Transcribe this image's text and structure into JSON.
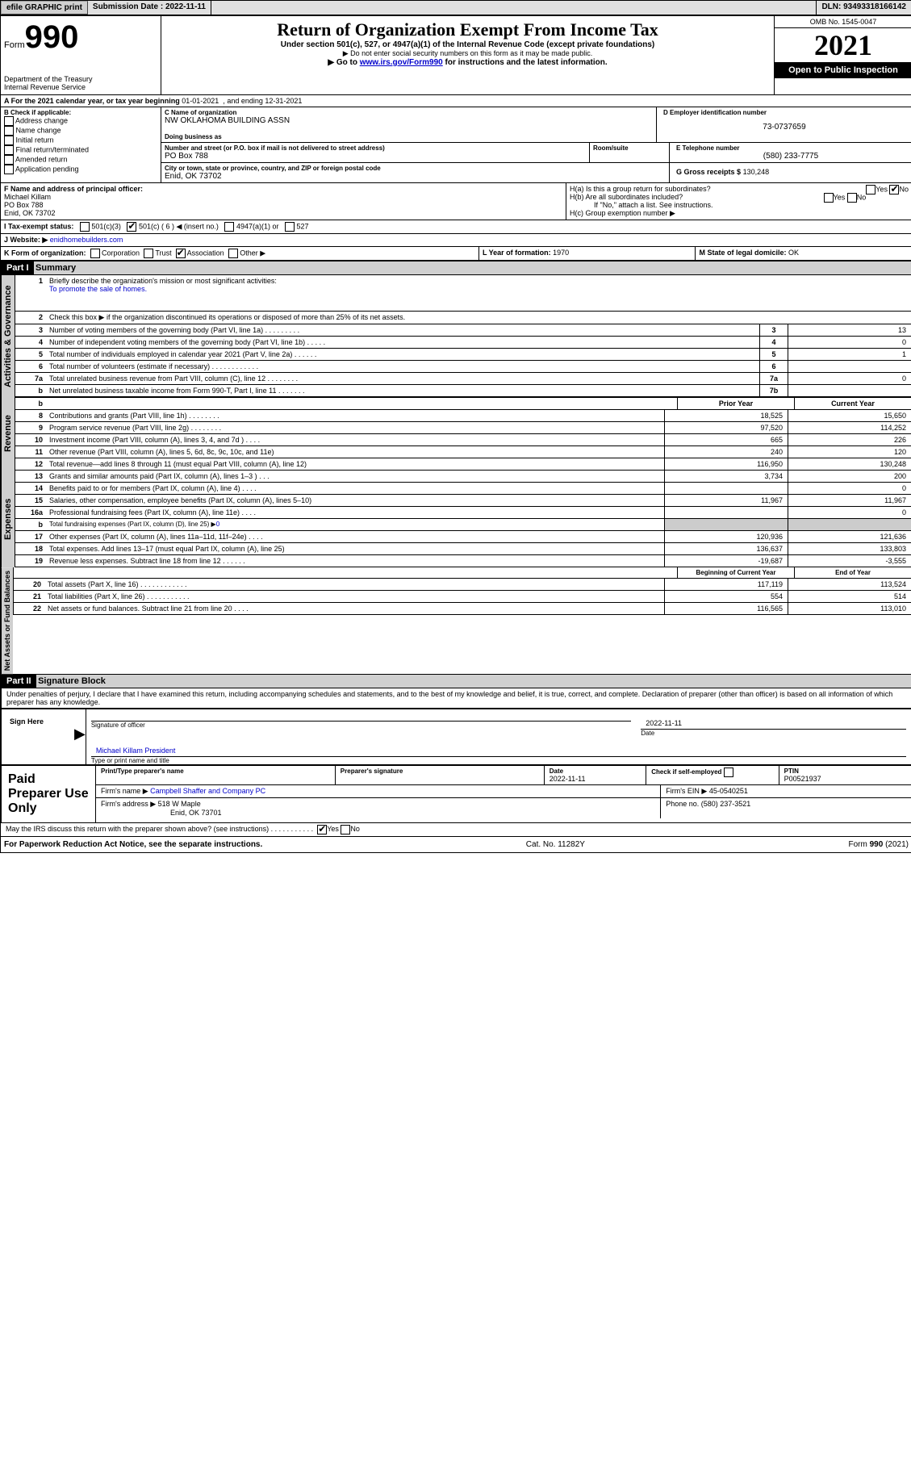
{
  "topbar": {
    "efile": "efile GRAPHIC print",
    "sub_lbl": "Submission Date :",
    "sub_date": "2022-11-11",
    "dln_lbl": "DLN:",
    "dln": "93493318166142"
  },
  "header": {
    "form": "Form",
    "no": "990",
    "dept": "Department of the Treasury",
    "irs": "Internal Revenue Service",
    "title": "Return of Organization Exempt From Income Tax",
    "sub1": "Under section 501(c), 527, or 4947(a)(1) of the Internal Revenue Code (except private foundations)",
    "sub2": "▶ Do not enter social security numbers on this form as it may be made public.",
    "sub3": "▶ Go to",
    "link": "www.irs.gov/Form990",
    "sub3b": "for instructions and the latest information.",
    "omb": "OMB No. 1545-0047",
    "year": "2021",
    "open": "Open to Public Inspection"
  },
  "lineA": {
    "pre": "A For the 2021 calendar year, or tax year beginning",
    "d1": "01-01-2021",
    "mid": ", and ending",
    "d2": "12-31-2021"
  },
  "B": {
    "hdr": "B Check if applicable:",
    "items": [
      "Address change",
      "Name change",
      "Initial return",
      "Final return/terminated",
      "Amended return",
      "Application pending"
    ]
  },
  "C": {
    "name_lbl": "C Name of organization",
    "name": "NW OKLAHOMA BUILDING ASSN",
    "dba_lbl": "Doing business as",
    "dba": "",
    "addr_lbl": "Number and street (or P.O. box if mail is not delivered to street address)",
    "addr": "PO Box 788",
    "room_lbl": "Room/suite",
    "city_lbl": "City or town, state or province, country, and ZIP or foreign postal code",
    "city": "Enid, OK  73702"
  },
  "D": {
    "lbl": "D Employer identification number",
    "val": "73-0737659"
  },
  "E": {
    "lbl": "E Telephone number",
    "val": "(580) 233-7775"
  },
  "G": {
    "lbl": "G Gross receipts $",
    "val": "130,248"
  },
  "F": {
    "lbl": "F  Name and address of principal officer:",
    "name": "Michael Killam",
    "addr1": "PO Box 788",
    "addr2": "Enid, OK  73702"
  },
  "H": {
    "a": "H(a)  Is this a group return for subordinates?",
    "b": "H(b)  Are all subordinates included?",
    "note": "If \"No,\" attach a list. See instructions.",
    "c": "H(c)  Group exemption number ▶",
    "yes": "Yes",
    "no": "No"
  },
  "I": {
    "lbl": "I    Tax-exempt status:",
    "o1": "501(c)(3)",
    "o2": "501(c) (",
    "o2n": "6",
    "o2e": ") ◀ (insert no.)",
    "o3": "4947(a)(1) or",
    "o4": "527"
  },
  "J": {
    "lbl": "J    Website: ▶",
    "val": "enidhomebuilders.com"
  },
  "K": {
    "lbl": "K Form of organization:",
    "o1": "Corporation",
    "o2": "Trust",
    "o3": "Association",
    "o4": "Other ▶"
  },
  "L": {
    "lbl": "L Year of formation:",
    "val": "1970"
  },
  "M": {
    "lbl": "M State of legal domicile:",
    "val": "OK"
  },
  "part1": {
    "hdr": "Part I",
    "title": "Summary"
  },
  "summary": {
    "q1": "Briefly describe the organization's mission or most significant activities:",
    "mission": "To promote the sale of homes.",
    "q2": "Check this box ▶         if the organization discontinued its operations or disposed of more than 25% of its net assets.",
    "lines": [
      {
        "n": "3",
        "t": "Number of voting members of the governing body (Part VI, line 1a)   .     .     .     .     .     .     .     .     .",
        "bx": "3",
        "v": "13"
      },
      {
        "n": "4",
        "t": "Number of independent voting members of the governing body (Part VI, line 1b)    .     .     .     .     .",
        "bx": "4",
        "v": "0"
      },
      {
        "n": "5",
        "t": "Total number of individuals employed in calendar year 2021 (Part V, line 2a)    .     .     .     .     .     .",
        "bx": "5",
        "v": "1"
      },
      {
        "n": "6",
        "t": "Total number of volunteers (estimate if necessary)    .     .     .     .     .     .     .     .     .     .     .     .",
        "bx": "6",
        "v": ""
      },
      {
        "n": "7a",
        "t": "Total unrelated business revenue from Part VIII, column (C), line 12    .     .     .     .     .     .     .     .",
        "bx": "7a",
        "v": "0"
      },
      {
        "n": "b",
        "t": "Net unrelated business taxable income from Form 990-T, Part I, line 11    .     .     .     .     .     .     .",
        "bx": "7b",
        "v": ""
      }
    ]
  },
  "cols": {
    "prior": "Prior Year",
    "curr": "Current Year",
    "boy": "Beginning of Current Year",
    "eoy": "End of Year",
    "b": "b"
  },
  "tabs": {
    "ag": "Activities & Governance",
    "rev": "Revenue",
    "exp": "Expenses",
    "na": "Net Assets or Fund Balances"
  },
  "rev": [
    {
      "n": "8",
      "t": "Contributions and grants (Part VIII, line 1h)   .     .     .     .     .     .     .     .",
      "p": "18,525",
      "c": "15,650"
    },
    {
      "n": "9",
      "t": "Program service revenue (Part VIII, line 2g)   .     .     .     .     .     .     .     .",
      "p": "97,520",
      "c": "114,252"
    },
    {
      "n": "10",
      "t": "Investment income (Part VIII, column (A), lines 3, 4, and 7d )  .     .     .     .",
      "p": "665",
      "c": "226"
    },
    {
      "n": "11",
      "t": "Other revenue (Part VIII, column (A), lines 5, 6d, 8c, 9c, 10c, and 11e)",
      "p": "240",
      "c": "120"
    },
    {
      "n": "12",
      "t": "Total revenue—add lines 8 through 11 (must equal Part VIII, column (A), line 12)",
      "p": "116,950",
      "c": "130,248"
    }
  ],
  "exp": [
    {
      "n": "13",
      "t": "Grants and similar amounts paid (Part IX, column (A), lines 1–3 )   .     .     .",
      "p": "3,734",
      "c": "200"
    },
    {
      "n": "14",
      "t": "Benefits paid to or for members (Part IX, column (A), line 4)   .     .     .     .",
      "p": "",
      "c": "0"
    },
    {
      "n": "15",
      "t": "Salaries, other compensation, employee benefits (Part IX, column (A), lines 5–10)",
      "p": "11,967",
      "c": "11,967"
    },
    {
      "n": "16a",
      "t": "Professional fundraising fees (Part IX, column (A), line 11e)   .     .     .     .",
      "p": "",
      "c": "0"
    },
    {
      "n": "b",
      "t": "Total fundraising expenses (Part IX, column (D), line 25) ▶",
      "bval": "0",
      "shade": true
    },
    {
      "n": "17",
      "t": "Other expenses (Part IX, column (A), lines 11a–11d, 11f–24e)   .     .     .     .",
      "p": "120,936",
      "c": "121,636"
    },
    {
      "n": "18",
      "t": "Total expenses. Add lines 13–17 (must equal Part IX, column (A), line 25)",
      "p": "136,637",
      "c": "133,803"
    },
    {
      "n": "19",
      "t": "Revenue less expenses. Subtract line 18 from line 12   .     .     .     .     .     .",
      "p": "-19,687",
      "c": "-3,555"
    }
  ],
  "na": [
    {
      "n": "20",
      "t": "Total assets (Part X, line 16)   .     .     .     .     .     .     .     .     .     .     .     .",
      "p": "117,119",
      "c": "113,524"
    },
    {
      "n": "21",
      "t": "Total liabilities (Part X, line 26)   .     .     .     .     .     .     .     .     .     .     .",
      "p": "554",
      "c": "514"
    },
    {
      "n": "22",
      "t": "Net assets or fund balances. Subtract line 21 from line 20   .     .     .     .",
      "p": "116,565",
      "c": "113,010"
    }
  ],
  "part2": {
    "hdr": "Part II",
    "title": "Signature Block",
    "decl": "Under penalties of perjury, I declare that I have examined this return, including accompanying schedules and statements, and to the best of my knowledge and belief, it is true, correct, and complete. Declaration of preparer (other than officer) is based on all information of which preparer has any knowledge."
  },
  "sign": {
    "lbl": "Sign Here",
    "sig": "Signature of officer",
    "date_lbl": "Date",
    "date": "2022-11-11",
    "name": "Michael Killam  President",
    "type": "Type or print name and title",
    "arrow": "▶"
  },
  "prep": {
    "lbl": "Paid Preparer Use Only",
    "h1": "Print/Type preparer's name",
    "h2": "Preparer's signature",
    "h3": "Date",
    "h3v": "2022-11-11",
    "h4": "Check         if self-employed",
    "h5": "PTIN",
    "h5v": "P00521937",
    "fn": "Firm's name     ▶",
    "fnv": "Campbell Shaffer and Company PC",
    "fe": "Firm's EIN ▶",
    "fev": "45-0540251",
    "fa": "Firm's address ▶",
    "fav1": "518 W Maple",
    "fav2": "Enid, OK  73701",
    "ph": "Phone no.",
    "phv": "(580) 237-3521"
  },
  "foot": {
    "may": "May the IRS discuss this return with the preparer shown above? (see instructions)    .     .     .     .     .     .     .     .     .     .     .",
    "yes": "Yes",
    "no": "No",
    "pra": "For Paperwork Reduction Act Notice, see the separate instructions.",
    "cat": "Cat. No. 11282Y",
    "form": "Form",
    "formno": "990",
    "yr": "(2021)"
  }
}
